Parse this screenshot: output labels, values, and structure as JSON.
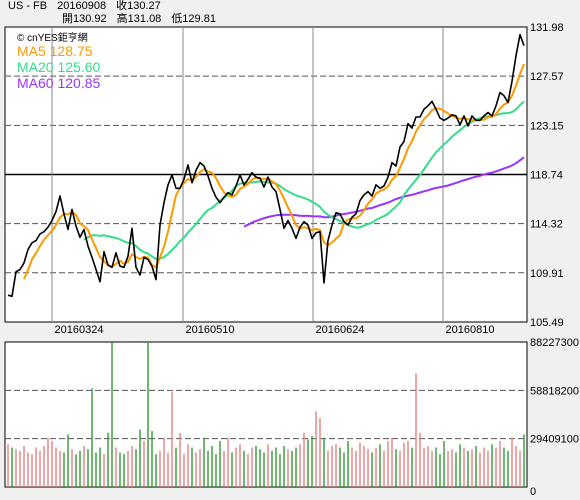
{
  "header": {
    "symbol": "US - FB",
    "date": "20160908",
    "close_label": "收130.27",
    "open_label": "開130.92",
    "high_label": "高131.08",
    "low_label": "低129.81"
  },
  "legend": {
    "brand": "© cnYES鉅亨網",
    "ma5": "MA5 128.75",
    "ma20": "MA20 125.60",
    "ma60": "MA60 120.85"
  },
  "colors": {
    "price": "#000000",
    "ma5": "#ff9900",
    "ma20": "#33dd88",
    "ma60": "#9933ff",
    "volume_up": "#e88080",
    "volume_down": "#339933",
    "background": "#f0f0f0"
  },
  "chart_data": [
    {
      "type": "line",
      "title": "",
      "x_tick_labels": [
        "20160324",
        "20160510",
        "20160624",
        "20160810"
      ],
      "y_tick_labels": [
        "131.98",
        "127.57",
        "123.15",
        "118.74",
        "114.32",
        "109.91",
        "105.49"
      ],
      "ylim": [
        105.49,
        131.98
      ],
      "grid": true,
      "series": [
        {
          "name": "Close",
          "values": [
            107.9,
            107.8,
            110.0,
            110.2,
            110.8,
            112.0,
            112.6,
            112.8,
            113.4,
            113.6,
            114.0,
            114.6,
            115.4,
            116.8,
            115.2,
            113.8,
            115.6,
            114.1,
            113.1,
            113.8,
            112.3,
            111.3,
            110.2,
            109.1,
            111.8,
            110.6,
            110.4,
            111.7,
            110.5,
            110.4,
            111.4,
            113.9,
            110.4,
            109.7,
            111.3,
            111.1,
            110.5,
            109.3,
            114.2,
            116.2,
            117.8,
            118.7,
            117.5,
            117.5,
            118.3,
            119.6,
            118.0,
            119.1,
            119.8,
            119.5,
            118.6,
            117.5,
            116.7,
            116.2,
            116.7,
            117.1,
            116.9,
            117.7,
            118.7,
            117.8,
            118.3,
            118.9,
            118.5,
            118.4,
            117.6,
            118.5,
            117.6,
            117.2,
            115.6,
            113.9,
            114.6,
            113.9,
            113.0,
            114.0,
            114.5,
            114.2,
            113.0,
            113.5,
            113.6,
            109.0,
            112.8,
            114.2,
            115.3,
            115.2,
            114.5,
            114.2,
            114.9,
            115.2,
            116.4,
            116.9,
            117.2,
            116.8,
            117.8,
            117.5,
            117.7,
            118.5,
            119.8,
            119.5,
            121.2,
            121.7,
            123.3,
            122.9,
            123.9,
            123.9,
            124.6,
            124.9,
            125.3,
            124.6,
            123.8,
            123.6,
            123.8,
            124.1,
            124.0,
            123.2,
            124.0,
            123.1,
            124.0,
            123.6,
            123.6,
            124.0,
            124.3,
            124.0,
            124.9,
            126.1,
            125.8,
            125.2,
            127.1,
            129.4,
            131.3,
            130.3
          ]
        },
        {
          "name": "MA5",
          "values": [],
          "label": "MA5 128.75"
        },
        {
          "name": "MA20",
          "values": [],
          "label": "MA20 125.60"
        },
        {
          "name": "MA60",
          "values": [],
          "label": "MA60 120.85"
        }
      ]
    },
    {
      "type": "bar",
      "title": "",
      "y_tick_labels": [
        "88227300",
        "58818200",
        "29409100",
        "0"
      ],
      "ylim": [
        0,
        88227300
      ],
      "grid": true,
      "series": [
        {
          "name": "Volume",
          "values": [
            26000000,
            24000000,
            23000000,
            22000000,
            25000000,
            21000000,
            20000000,
            24000000,
            22000000,
            25000000,
            30000000,
            28000000,
            24000000,
            22000000,
            21000000,
            32000000,
            23000000,
            20000000,
            22000000,
            25000000,
            23000000,
            60000000,
            21000000,
            24000000,
            20000000,
            33000000,
            88000000,
            24000000,
            21000000,
            20000000,
            22000000,
            25000000,
            23000000,
            35000000,
            28000000,
            88227300,
            34000000,
            20000000,
            22000000,
            30000000,
            21000000,
            58000000,
            24000000,
            33000000,
            20000000,
            26000000,
            24000000,
            21000000,
            23000000,
            30000000,
            22000000,
            25000000,
            20000000,
            28000000,
            22000000,
            30000000,
            21000000,
            24000000,
            26000000,
            22000000,
            20000000,
            24000000,
            25000000,
            23000000,
            21000000,
            26000000,
            22000000,
            24000000,
            20000000,
            25000000,
            23000000,
            22000000,
            24000000,
            26000000,
            33000000,
            29000000,
            31000000,
            46000000,
            42000000,
            30000000,
            22000000,
            25000000,
            26000000,
            24000000,
            21000000,
            28000000,
            24000000,
            22000000,
            27000000,
            25000000,
            23000000,
            21000000,
            24000000,
            26000000,
            22000000,
            28000000,
            30000000,
            23000000,
            22000000,
            27000000,
            28000000,
            24000000,
            69000000,
            33000000,
            24000000,
            25000000,
            22000000,
            24000000,
            20000000,
            28000000,
            22000000,
            23000000,
            21000000,
            26000000,
            24000000,
            22000000,
            23000000,
            25000000,
            21000000,
            24000000,
            22000000,
            26000000,
            24000000,
            28000000,
            24000000,
            22000000,
            30000000,
            25000000,
            22000000,
            32000000
          ]
        }
      ]
    }
  ]
}
